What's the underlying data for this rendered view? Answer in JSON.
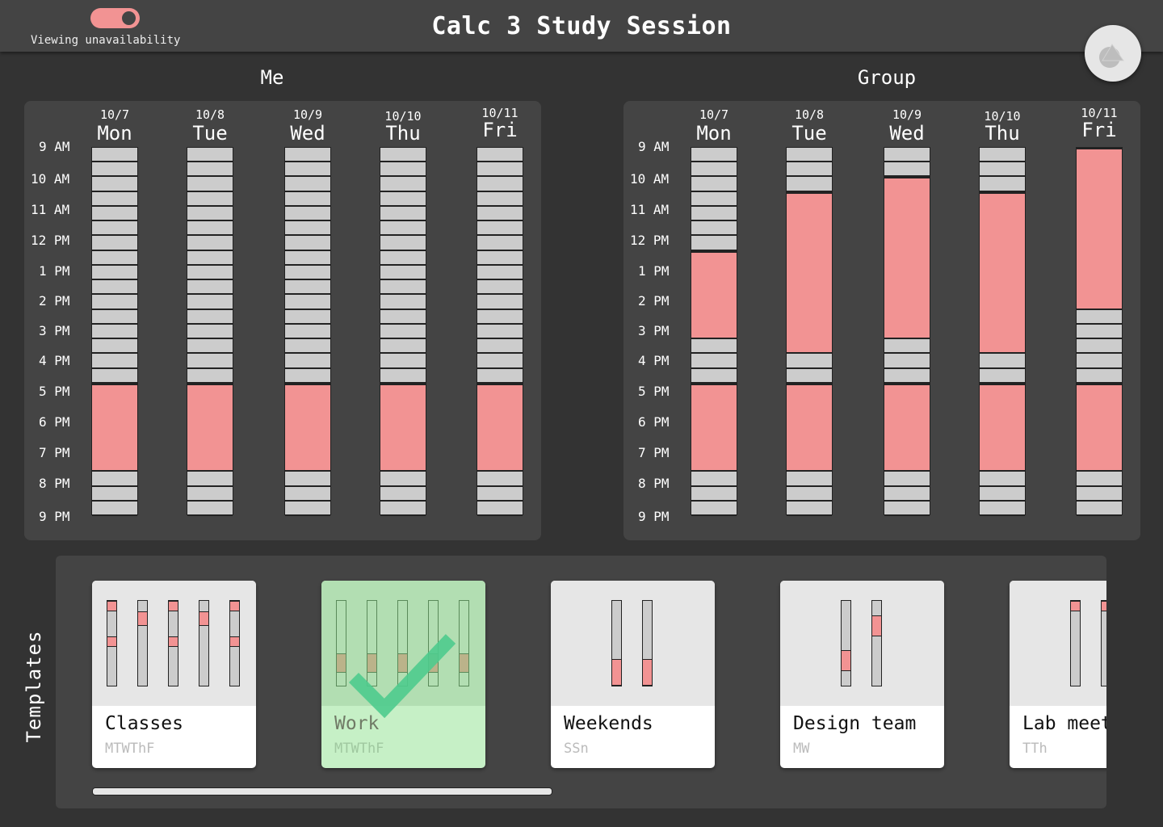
{
  "header": {
    "title": "Calc 3 Study Session",
    "toggle_label": "Viewing unavailability",
    "toggle_on": true
  },
  "colors": {
    "busy": "#f29393",
    "free": "#cccccc",
    "background": "#333333",
    "panel": "#444444",
    "selected_card": "#c6f0c6",
    "check": "#4ecb8d"
  },
  "time_labels": [
    "9 AM",
    "10 AM",
    "11 AM",
    "12 PM",
    "1 PM",
    "2 PM",
    "3 PM",
    "4 PM",
    "5 PM",
    "6 PM",
    "7 PM",
    "8 PM",
    "9 PM"
  ],
  "me": {
    "title": "Me",
    "days": [
      {
        "date": "10/7",
        "name": "Mon",
        "busy": [
          [
            16,
            22
          ]
        ]
      },
      {
        "date": "10/8",
        "name": "Tue",
        "busy": [
          [
            16,
            22
          ]
        ]
      },
      {
        "date": "10/9",
        "name": "Wed",
        "busy": [
          [
            16,
            22
          ]
        ]
      },
      {
        "date": "10/10",
        "name": "Thu",
        "busy": [
          [
            16,
            22
          ]
        ]
      },
      {
        "date": "10/11",
        "name": "Fri",
        "busy": [
          [
            16,
            22
          ]
        ]
      }
    ]
  },
  "group": {
    "title": "Group",
    "days": [
      {
        "date": "10/7",
        "name": "Mon",
        "busy": [
          [
            7,
            13
          ],
          [
            16,
            22
          ]
        ]
      },
      {
        "date": "10/8",
        "name": "Tue",
        "busy": [
          [
            3,
            14
          ],
          [
            16,
            22
          ]
        ]
      },
      {
        "date": "10/9",
        "name": "Wed",
        "busy": [
          [
            2,
            13
          ],
          [
            16,
            22
          ]
        ]
      },
      {
        "date": "10/10",
        "name": "Thu",
        "busy": [
          [
            3,
            14
          ],
          [
            16,
            22
          ]
        ]
      },
      {
        "date": "10/11",
        "name": "Fri",
        "busy": [
          [
            0,
            11
          ],
          [
            16,
            22
          ]
        ]
      }
    ]
  },
  "templates": {
    "label": "Templates",
    "items": [
      {
        "name": "Classes",
        "days": "MTWThF",
        "selected": false,
        "bars": [
          [
            [
              0,
              12
            ],
            [
              42,
              54
            ]
          ],
          [
            [
              12,
              30
            ]
          ],
          [
            [
              0,
              12
            ],
            [
              42,
              54
            ]
          ],
          [
            [
              12,
              30
            ]
          ],
          [
            [
              0,
              12
            ],
            [
              42,
              54
            ]
          ]
        ]
      },
      {
        "name": "Work",
        "days": "MTWThF",
        "selected": true,
        "bars": [
          [
            [
              62,
              85
            ]
          ],
          [
            [
              62,
              85
            ]
          ],
          [
            [
              62,
              85
            ]
          ],
          [
            [
              62,
              85
            ]
          ],
          [
            [
              62,
              85
            ]
          ]
        ]
      },
      {
        "name": "Weekends",
        "days": "SSn",
        "selected": false,
        "bars": [
          [
            [
              69,
              100
            ]
          ],
          [
            [
              69,
              100
            ]
          ]
        ]
      },
      {
        "name": "Design team",
        "days": "MW",
        "selected": false,
        "bars": [
          [
            [
              58,
              83
            ]
          ],
          [
            [
              17,
              42
            ]
          ]
        ]
      },
      {
        "name": "Lab meet",
        "days": "TTh",
        "selected": false,
        "bars": [
          [
            [
              0,
              12
            ]
          ],
          [
            [
              0,
              12
            ]
          ]
        ]
      }
    ]
  }
}
